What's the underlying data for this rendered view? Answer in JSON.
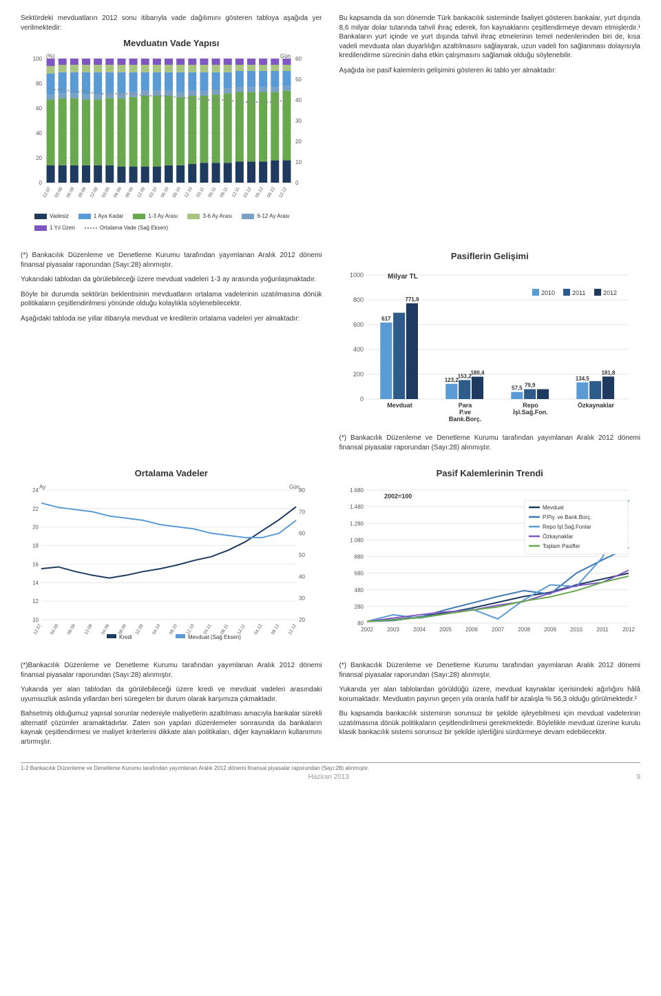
{
  "para": {
    "intro_left": "Sektördeki mevduatların 2012 sonu itibarıyla vade dağılımını gösteren tabloya aşağıda yer verilmektedir:",
    "right1": "Bu kapsamda da son dönemde Türk bankacılık sisteminde faaliyet gösteren bankalar, yurt dışında 8,6 milyar dolar tutarında tahvil ihraç ederek, fon kaynaklarını çeşitlendirmeye devam etmişlerdir.¹ Bankaların yurt içinde ve yurt dışında tahvil ihraç etmelerinin temel nedenlerinden biri de, kısa vadeli mevduata olan duyarlılığın azaltılmasını sağlayarak, uzun vadeli fon sağlanması dolayısıyla kredilendirme sürecinin daha etkin çalışmasını sağlamak olduğu söylenebilir.",
    "right2": "Aşağıda ise pasif kalemlerin gelişimini gösteren iki tablo yer almaktadır:",
    "left_src1": "(*) Bankacılık Düzenleme ve Denetleme Kurumu tarafından yayımlanan Aralık 2012 dönemi finansal piyasalar raporundan (Sayı:28) alınmıştır.",
    "left2": "Yukarıdaki tablodan da görülebileceği üzere mevduat vadeleri 1-3 ay arasında yoğunlaşmaktadır.",
    "left3": "Böyle bir durumda sektörün beklentisinin mevduatların ortalama vadelerinin uzatılmasına dönük politikaların çeşitlendirilmesi yönünde olduğu kolaylıkla söylenebilecektir.",
    "left4": "Aşağıdaki tabloda ise yıllar itibarıyla mevduat ve kredilerin ortalama vadeleri yer almaktadır:",
    "right_src2": "(*) Bankacılık Düzenleme ve Denetleme Kurumu tarafından yayımlanan Aralık 2012 dönemi finansal piyasalar raporundan (Sayı:28) alınmıştır.",
    "bl1": "(*)Bankacılık Düzenleme ve Denetleme Kurumu tarafından yayımlanan Aralık 2012 dönemi finansal piyasalar raporundan (Sayı:28) alınmıştır.",
    "bl2": "Yukarıda yer alan tablodan da görülebileceği üzere kredi ve mevduat vadeleri arasındaki uyumsuzluk aslında yıllardan beri süregelen bir durum olarak karşımıza çıkmaktadır.",
    "bl3": "Bahsetmiş olduğumuz yapısal sorunlar nedeniyle maliyetlerin azaltılması amacıyla bankalar sürekli alternatif çözümler aramaktadırlar. Zaten son yapılan düzenlemeler sonrasında da bankaların kaynak çeşitlendirmesi ve maliyet kriterlerini dikkate alan politikaları, diğer kaynakların kullanımını artırmıştır.",
    "br1": "(*) Bankacılık Düzenleme ve Denetleme Kurumu tarafından yayımlanan Aralık 2012 dönemi finansal piyasalar raporundan (Sayı:28) alınmıştır.",
    "br2": "Yukarıda yer alan tablolardan görüldüğü üzere, mevduat kaynaklar içerisindeki ağırlığını hâlâ korumaktadır. Mevduatın payının geçen yıla oranla hafif bir azalışla % 56,3 olduğu görülmektedir.²",
    "br3": "Bu kapsamda bankacılık sisteminin sorunsuz bir şekilde işleyebilmesi için mevduat vadelerinin uzatılmasına dönük politikaların çeşitlendirilmesi gerekmektedir. Böylelikle mevduat üzerine kurulu klasik bankacılık sistemi sorunsuz bir şekilde işlerliğini sürdürmeye devam edebilecektir."
  },
  "footnote": "1-2 Bankacılık Düzenleme ve Denetleme Kurumu tarafından yayımlanan Aralık 2012 dönemi finansal piyasalar raporundan (Sayı:28) alınmıştır.",
  "footer_date": "Haziran 2013",
  "page_number": "9",
  "chart1": {
    "title": "Mevduatın Vade Yapısı",
    "ylabel_left": "(%)",
    "ylabel_right": "Gün",
    "yleft": [
      0,
      20,
      40,
      60,
      80,
      100
    ],
    "yright": [
      0,
      10,
      20,
      30,
      40,
      50,
      60
    ],
    "xlabels": [
      "12.07",
      "03.08",
      "06.08",
      "09.08",
      "12.08",
      "03.09",
      "06.09",
      "09.09",
      "12.09",
      "03.10",
      "06.10",
      "09.10",
      "12.10",
      "03.11",
      "06.11",
      "09.11",
      "12.11",
      "03.12",
      "06.12",
      "09.12",
      "12.12"
    ],
    "series_colors": [
      "#1f3a5f",
      "#6aa84f",
      "#7aa0c4",
      "#5b9bd5",
      "#a9c47f",
      "#7e57c2"
    ],
    "series_names": [
      "Vadesiz",
      "1-3 Ay Arası",
      "6-12 Ay Arası",
      "1 Aya Kadar",
      "3-6 Ay Arası",
      "1 Yıl Üzeri"
    ],
    "avg_label": "Ortalama Vade (Sağ Eksen)",
    "stack": [
      [
        14,
        53,
        4,
        17,
        6,
        6
      ],
      [
        14,
        54,
        4,
        17,
        6,
        5
      ],
      [
        14,
        54,
        4,
        17,
        6,
        5
      ],
      [
        14,
        53,
        4,
        18,
        6,
        5
      ],
      [
        14,
        53,
        4,
        18,
        6,
        5
      ],
      [
        14,
        54,
        4,
        17,
        6,
        5
      ],
      [
        13,
        55,
        4,
        17,
        6,
        5
      ],
      [
        13,
        56,
        4,
        16,
        6,
        5
      ],
      [
        13,
        57,
        4,
        15,
        6,
        5
      ],
      [
        13,
        57,
        4,
        15,
        6,
        5
      ],
      [
        14,
        56,
        4,
        15,
        6,
        5
      ],
      [
        14,
        55,
        4,
        16,
        6,
        5
      ],
      [
        15,
        55,
        4,
        15,
        6,
        5
      ],
      [
        16,
        54,
        4,
        15,
        6,
        5
      ],
      [
        16,
        55,
        4,
        14,
        6,
        5
      ],
      [
        16,
        56,
        4,
        13,
        6,
        5
      ],
      [
        17,
        56,
        4,
        13,
        5,
        5
      ],
      [
        17,
        56,
        4,
        13,
        5,
        5
      ],
      [
        17,
        56,
        4,
        13,
        5,
        5
      ],
      [
        18,
        55,
        4,
        13,
        5,
        5
      ],
      [
        18,
        56,
        4,
        12,
        5,
        5
      ]
    ],
    "avg_line": [
      45,
      45,
      44,
      44,
      43,
      43,
      43,
      43,
      42,
      42,
      42,
      41,
      41,
      40,
      40,
      40,
      39,
      39,
      39,
      39,
      40
    ],
    "avg_color": "#888888"
  },
  "chart2": {
    "title": "Pasiflerin Gelişimi",
    "ylabel": "Milyar TL",
    "yticks": [
      0,
      200,
      400,
      600,
      800,
      1000
    ],
    "categories": [
      "Mevduat",
      "Para P.ve Bank.Borç.",
      "Repo İşl.Sağ.Fon.",
      "Özkaynaklar"
    ],
    "years": [
      "2010",
      "2011",
      "2012"
    ],
    "colors": [
      "#5b9bd5",
      "#2e5c8a",
      "#1f3a5f"
    ],
    "values": [
      [
        617,
        696,
        771.9
      ],
      [
        123.2,
        153.2,
        180.4
      ],
      [
        57.5,
        79.9,
        79.9
      ],
      [
        134.5,
        145,
        181.8
      ]
    ],
    "labels_top": [
      [
        "617",
        "",
        "771,9"
      ],
      [
        "123,2",
        "153,2",
        "180,4"
      ],
      [
        "57,5",
        "79,9",
        ""
      ],
      [
        "134,5",
        "",
        "181,8"
      ]
    ]
  },
  "chart3": {
    "title": "Ortalama Vadeler",
    "yl_label": "Ay",
    "yr_label": "Gün",
    "yleft": [
      10,
      12,
      14,
      16,
      18,
      20,
      22,
      24
    ],
    "yright": [
      20,
      30,
      40,
      50,
      60,
      70,
      80
    ],
    "xlabels": [
      "12.07",
      "04.08",
      "08.08",
      "12.08",
      "04.09",
      "08.09",
      "12.09",
      "04.10",
      "08.10",
      "12.10",
      "04.11",
      "08.11",
      "12.11",
      "04.12",
      "08.12",
      "12.12"
    ],
    "series": [
      {
        "name": "Kredi",
        "color": "#1f3a5f",
        "data": [
          15.5,
          15.7,
          15.2,
          14.8,
          14.5,
          14.8,
          15.2,
          15.5,
          15.9,
          16.4,
          16.8,
          17.5,
          18.4,
          19.6,
          20.8,
          22.2
        ],
        "axis": "left"
      },
      {
        "name": "Mevduat (Sağ Eksen)",
        "color": "#5b9bd5",
        "data": [
          74,
          72,
          71,
          70,
          68,
          67,
          66,
          64,
          63,
          62,
          60,
          59,
          58,
          58,
          60,
          66
        ],
        "axis": "right"
      }
    ]
  },
  "chart4": {
    "title": "Pasif Kalemlerinin Trendi",
    "sub": "2002=100",
    "yticks": [
      80,
      280,
      480,
      680,
      880,
      1080,
      1280,
      1480,
      1680
    ],
    "xlabels": [
      "2002",
      "2003",
      "2004",
      "2005",
      "2006",
      "2007",
      "2008",
      "2009",
      "2010",
      "2011",
      "2012"
    ],
    "series": [
      {
        "name": "Mevduat",
        "color": "#1f3a5f",
        "data": [
          100,
          120,
          155,
          200,
          260,
          330,
          400,
          450,
          540,
          610,
          680
        ]
      },
      {
        "name": "P.Piy. ve Bank.Borç.",
        "color": "#3d78b3",
        "data": [
          100,
          110,
          150,
          240,
          320,
          400,
          470,
          430,
          680,
          840,
          990
        ]
      },
      {
        "name": "Repo İşl.Sağ.Fonlar",
        "color": "#5b9bd5",
        "data": [
          100,
          180,
          140,
          190,
          250,
          130,
          360,
          540,
          520,
          870,
          1560
        ]
      },
      {
        "name": "Özkaynaklar",
        "color": "#7e57c2",
        "data": [
          100,
          140,
          180,
          215,
          235,
          295,
          340,
          440,
          530,
          570,
          715
        ]
      },
      {
        "name": "Toplam Pasifler",
        "color": "#6aa84f",
        "data": [
          100,
          118,
          145,
          190,
          235,
          275,
          345,
          395,
          470,
          570,
          645
        ]
      }
    ]
  }
}
